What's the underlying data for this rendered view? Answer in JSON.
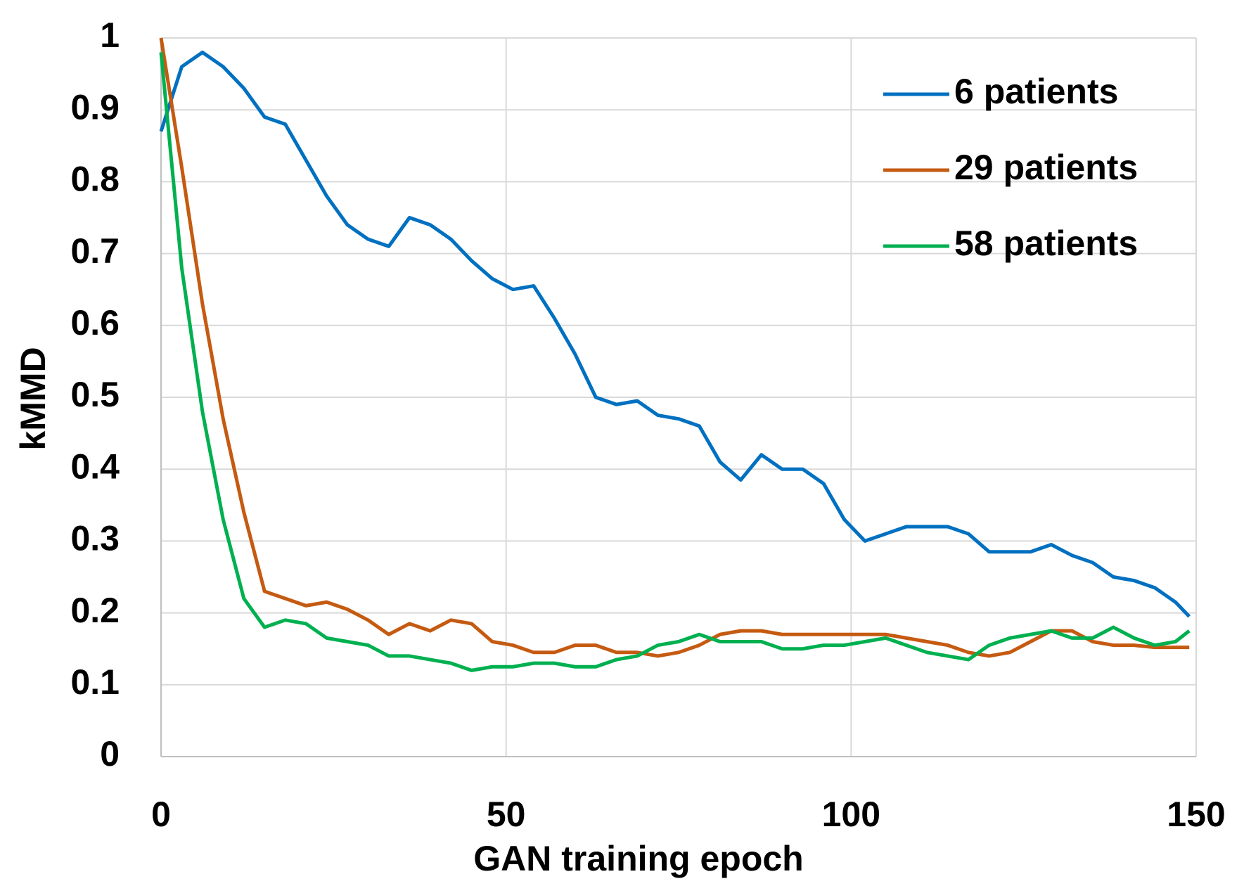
{
  "chart_data": {
    "type": "line",
    "x_label": "GAN training epoch",
    "y_label": "kMMD",
    "x": [
      0,
      3,
      6,
      9,
      12,
      15,
      18,
      21,
      24,
      27,
      30,
      33,
      36,
      39,
      42,
      45,
      48,
      51,
      54,
      57,
      60,
      63,
      66,
      69,
      72,
      75,
      78,
      81,
      84,
      87,
      90,
      93,
      96,
      99,
      102,
      105,
      108,
      111,
      114,
      117,
      120,
      123,
      126,
      129,
      132,
      135,
      138,
      141,
      144,
      147,
      149
    ],
    "series": [
      {
        "name": "6 patients",
        "color": "#0070c0",
        "values": [
          0.87,
          0.96,
          0.98,
          0.96,
          0.93,
          0.89,
          0.88,
          0.83,
          0.78,
          0.74,
          0.72,
          0.71,
          0.75,
          0.74,
          0.72,
          0.69,
          0.665,
          0.65,
          0.655,
          0.61,
          0.56,
          0.5,
          0.49,
          0.495,
          0.475,
          0.47,
          0.46,
          0.41,
          0.385,
          0.42,
          0.4,
          0.4,
          0.38,
          0.33,
          0.3,
          0.31,
          0.32,
          0.32,
          0.32,
          0.31,
          0.285,
          0.285,
          0.285,
          0.295,
          0.28,
          0.27,
          0.25,
          0.245,
          0.235,
          0.215,
          0.195
        ]
      },
      {
        "name": "29 patients",
        "color": "#c55a11",
        "values": [
          1.0,
          0.82,
          0.63,
          0.47,
          0.34,
          0.23,
          0.22,
          0.21,
          0.215,
          0.205,
          0.19,
          0.17,
          0.185,
          0.175,
          0.19,
          0.185,
          0.16,
          0.155,
          0.145,
          0.145,
          0.155,
          0.155,
          0.145,
          0.145,
          0.14,
          0.145,
          0.155,
          0.17,
          0.175,
          0.175,
          0.17,
          0.17,
          0.17,
          0.17,
          0.17,
          0.17,
          0.165,
          0.16,
          0.155,
          0.145,
          0.14,
          0.145,
          0.16,
          0.175,
          0.175,
          0.16,
          0.155,
          0.155,
          0.152,
          0.152,
          0.152
        ]
      },
      {
        "name": "58 patients",
        "color": "#00b050",
        "values": [
          0.98,
          0.68,
          0.48,
          0.33,
          0.22,
          0.18,
          0.19,
          0.185,
          0.165,
          0.16,
          0.155,
          0.14,
          0.14,
          0.135,
          0.13,
          0.12,
          0.125,
          0.125,
          0.13,
          0.13,
          0.125,
          0.125,
          0.135,
          0.14,
          0.155,
          0.16,
          0.17,
          0.16,
          0.16,
          0.16,
          0.15,
          0.15,
          0.155,
          0.155,
          0.16,
          0.165,
          0.155,
          0.145,
          0.14,
          0.135,
          0.155,
          0.165,
          0.17,
          0.175,
          0.165,
          0.165,
          0.18,
          0.165,
          0.155,
          0.16,
          0.175
        ]
      }
    ],
    "xlim": [
      0,
      150
    ],
    "xticks": [
      0,
      50,
      100,
      150
    ],
    "ylim": [
      0,
      1
    ],
    "yticks": [
      0,
      0.1,
      0.2,
      0.3,
      0.4,
      0.5,
      0.6,
      0.7,
      0.8,
      0.9,
      1
    ],
    "grid": true,
    "legend": "top-right"
  }
}
